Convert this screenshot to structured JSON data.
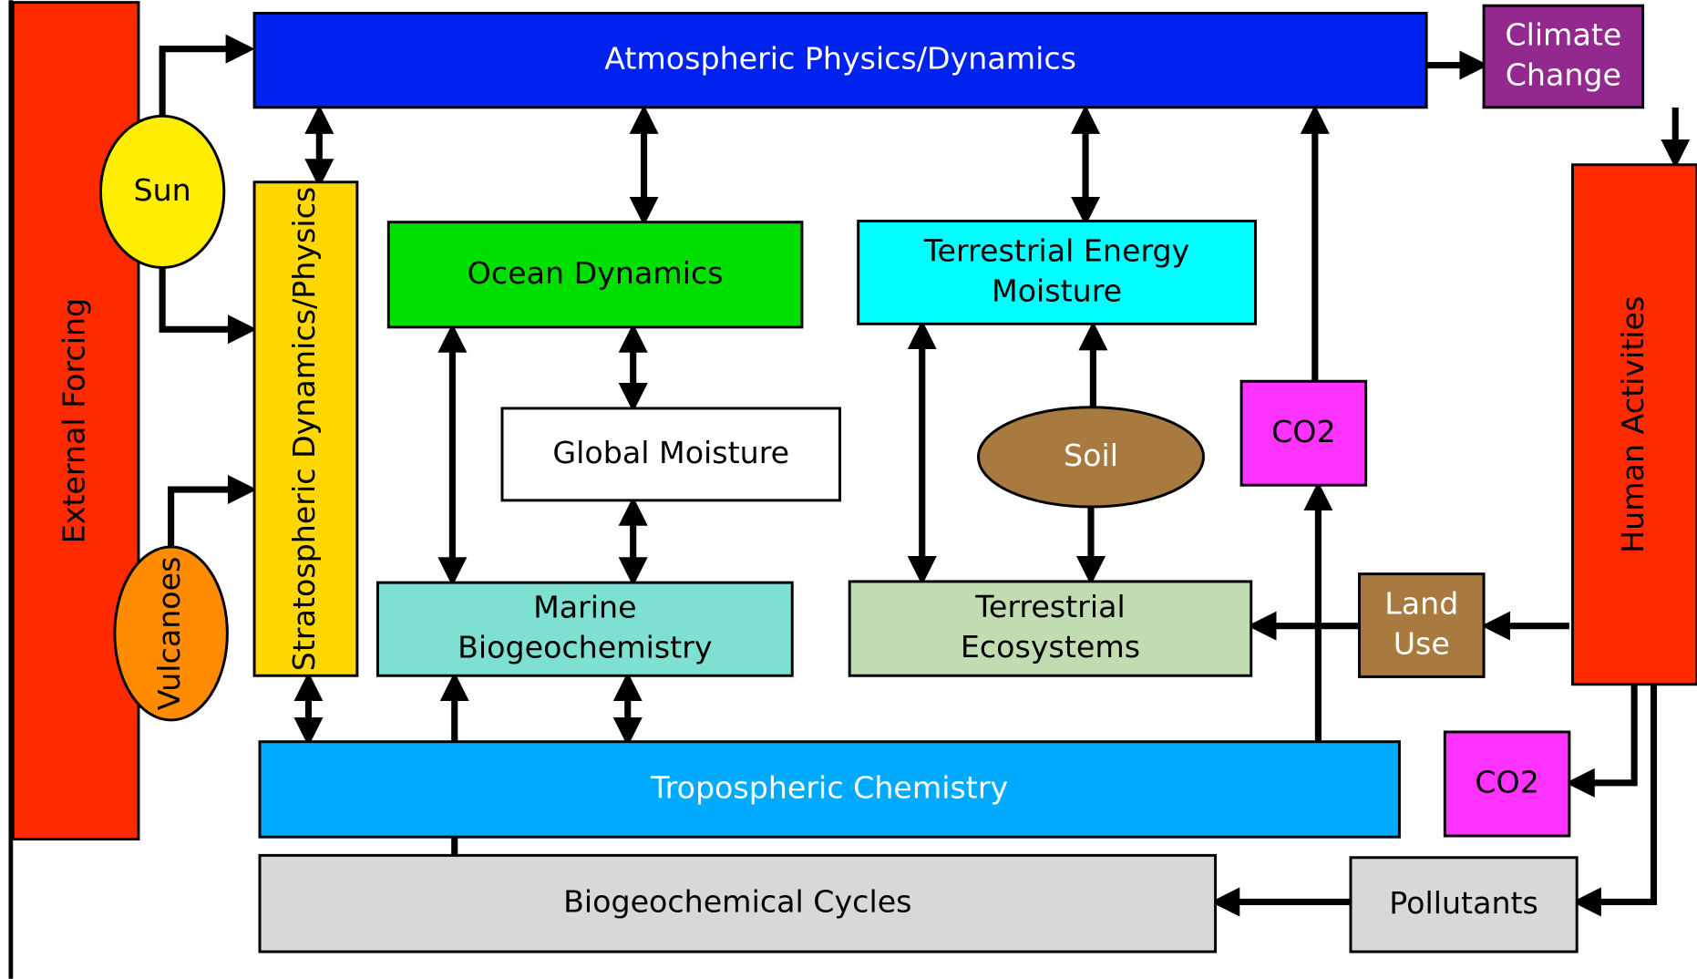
{
  "nodes": [
    {
      "label": [
        "External Forcing"
      ]
    },
    {
      "label": [
        "Sun"
      ]
    },
    {
      "label": [
        "Vulcanoes"
      ]
    },
    {
      "label": [
        "Atmospheric Physics/Dynamics"
      ]
    },
    {
      "label": [
        "Climate",
        "Change"
      ]
    },
    {
      "label": [
        "Stratospheric Dynamics/Physics"
      ]
    },
    {
      "label": [
        "Ocean Dynamics"
      ]
    },
    {
      "label": [
        "Terrestrial Energy",
        "Moisture"
      ]
    },
    {
      "label": [
        "Global Moisture"
      ]
    },
    {
      "label": [
        "Soil"
      ]
    },
    {
      "label": [
        "CO2"
      ]
    },
    {
      "label": [
        "Human Activities"
      ]
    },
    {
      "label": [
        "Marine",
        "Biogeochemistry"
      ]
    },
    {
      "label": [
        "Terrestrial",
        "Ecosystems"
      ]
    },
    {
      "label": [
        "Land",
        "Use"
      ]
    },
    {
      "label": [
        "Tropospheric Chemistry"
      ]
    },
    {
      "label": [
        "CO2"
      ]
    },
    {
      "label": [
        "Biogeochemical Cycles"
      ]
    },
    {
      "label": [
        "Pollutants"
      ]
    }
  ]
}
